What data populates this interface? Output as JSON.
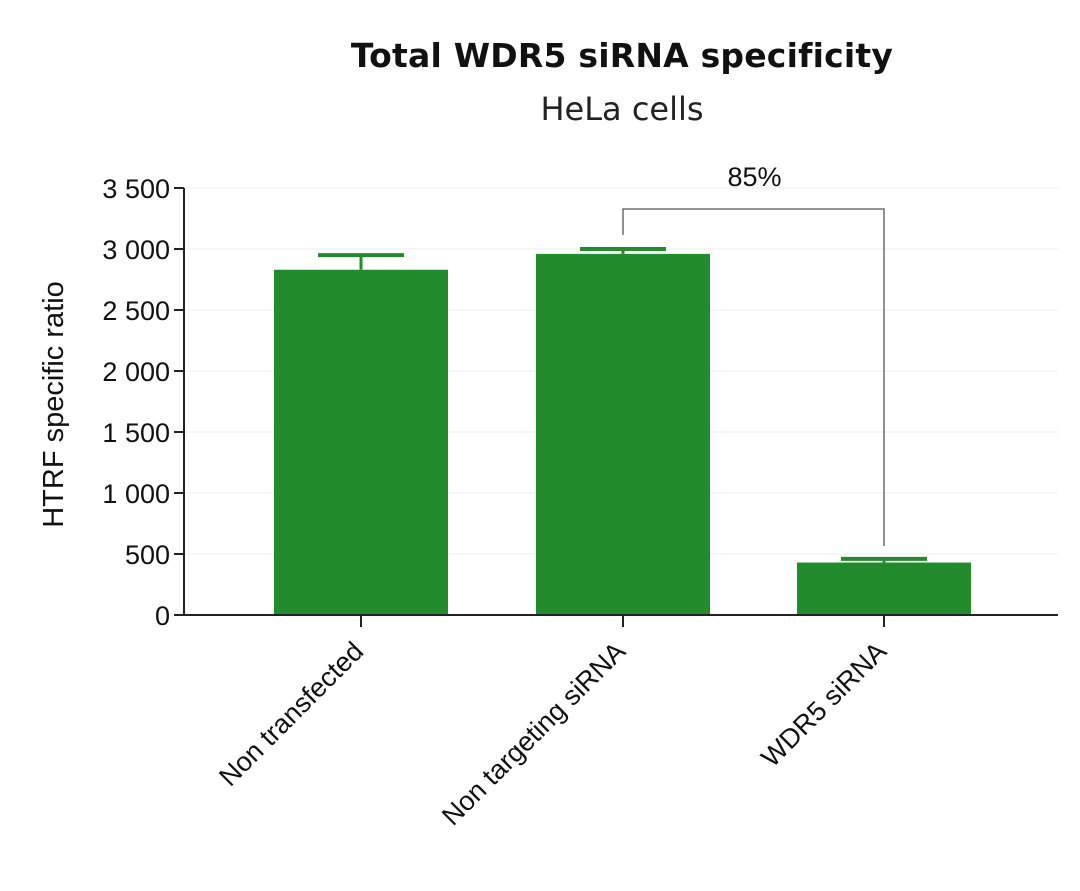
{
  "chart_data": {
    "type": "bar",
    "title": "Total WDR5 siRNA specificity",
    "subtitle": "HeLa cells",
    "ylabel": "HTRF specific ratio",
    "xlabel": "",
    "categories": [
      "Non transfected",
      "Non targeting siRNA",
      "WDR5 siRNA"
    ],
    "values": [
      2830,
      2960,
      430
    ],
    "error_bars": [
      120,
      40,
      30
    ],
    "ylim": [
      0,
      3500
    ],
    "yticks": [
      0,
      500,
      1000,
      1500,
      2000,
      2500,
      3000,
      3500
    ],
    "ytick_labels": [
      "0",
      "500",
      "1 000",
      "1 500",
      "2 000",
      "2 500",
      "3 000",
      "3 500"
    ],
    "grid": true,
    "bar_color": "#228b2b",
    "annotation": {
      "text": "85%",
      "from_category": "Non targeting siRNA",
      "to_category": "WDR5 siRNA"
    }
  }
}
